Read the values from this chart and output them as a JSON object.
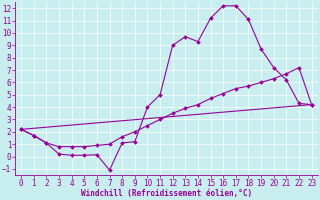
{
  "xlabel": "Windchill (Refroidissement éolien,°C)",
  "bg_color": "#c8eef0",
  "line_color": "#990099",
  "ylim": [
    -1.5,
    12.5
  ],
  "xlim": [
    -0.5,
    23.5
  ],
  "yticks": [
    -1,
    0,
    1,
    2,
    3,
    4,
    5,
    6,
    7,
    8,
    9,
    10,
    11,
    12
  ],
  "xticks": [
    0,
    1,
    2,
    3,
    4,
    5,
    6,
    7,
    8,
    9,
    10,
    11,
    12,
    13,
    14,
    15,
    16,
    17,
    18,
    19,
    20,
    21,
    22,
    23
  ],
  "line1_x": [
    0,
    1,
    2,
    3,
    4,
    5,
    6,
    7,
    8,
    9,
    10,
    11,
    12,
    13,
    14,
    15,
    16,
    17,
    18,
    19,
    20,
    21,
    22,
    23
  ],
  "line1_y": [
    2.2,
    1.7,
    1.1,
    0.2,
    0.1,
    0.1,
    0.15,
    -1.1,
    1.1,
    1.2,
    4.0,
    5.0,
    9.0,
    9.7,
    9.3,
    11.2,
    12.2,
    12.2,
    11.1,
    8.7,
    7.2,
    6.2,
    4.3,
    4.2
  ],
  "line2_x": [
    0,
    1,
    2,
    3,
    4,
    5,
    6,
    7,
    8,
    9,
    10,
    11,
    12,
    13,
    14,
    15,
    16,
    17,
    18,
    19,
    20,
    21,
    22,
    23
  ],
  "line2_y": [
    2.2,
    1.7,
    1.1,
    0.8,
    0.8,
    0.8,
    0.9,
    1.0,
    1.6,
    2.0,
    2.5,
    3.0,
    3.5,
    3.9,
    4.2,
    4.7,
    5.1,
    5.5,
    5.7,
    6.0,
    6.3,
    6.7,
    7.2,
    4.2
  ],
  "line3_x": [
    0,
    23
  ],
  "line3_y": [
    2.2,
    4.2
  ],
  "marker": "D",
  "marker_size": 2.0,
  "linewidth": 0.8,
  "grid_color": "#ffffff",
  "tick_fontsize": 5.5,
  "xlabel_fontsize": 5.5
}
